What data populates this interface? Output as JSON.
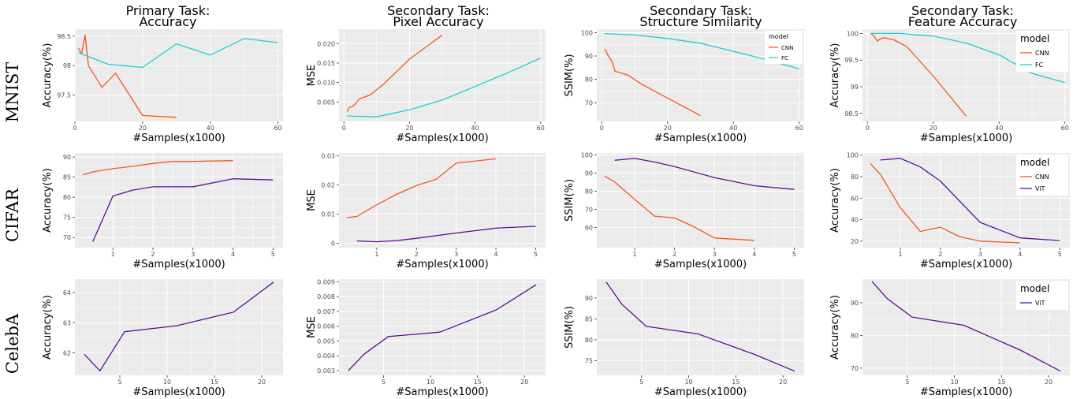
{
  "column_titles": [
    [
      "Primary Task:",
      "Accuracy"
    ],
    [
      "Secondary Task:",
      "Pixel Accuracy"
    ],
    [
      "Secondary Task:",
      "Structure Similarity"
    ],
    [
      "Secondary Task:",
      "Feature Accuracy"
    ]
  ],
  "row_labels": [
    "MNIST",
    "CIFAR",
    "CelebA"
  ],
  "colors": {
    "CNN": "#f8561b",
    "FC": "#1ccfd1",
    "ViT": "#5a1196",
    "panel_bg": "#ebebeb",
    "grid": "#ffffff"
  },
  "chart_data": [
    {
      "type": "line",
      "row": 0,
      "col": 0,
      "xlabel": "#Samples(x1000)",
      "ylabel": "Accuracy(%)",
      "xlim": [
        0,
        61.5
      ],
      "ylim": [
        97.05,
        98.62
      ],
      "xticks": [
        0,
        20,
        40,
        60
      ],
      "yticks": [
        97.5,
        98,
        98.5
      ],
      "xtick_labels": [
        "0",
        "20",
        "40",
        "60"
      ],
      "ytick_labels": [
        "97.5",
        "98",
        "98.5"
      ],
      "legend": null,
      "series": [
        {
          "color": "#f8561b",
          "x": [
            1,
            2,
            3,
            4,
            8,
            12,
            20,
            30
          ],
          "y": [
            98.3,
            98.2,
            98.52,
            98.0,
            97.63,
            97.87,
            97.15,
            97.12
          ]
        },
        {
          "color": "#1ccfd1",
          "x": [
            1,
            10,
            20,
            30,
            40,
            50,
            60
          ],
          "y": [
            98.22,
            98.02,
            97.97,
            98.37,
            98.18,
            98.46,
            98.39
          ]
        }
      ]
    },
    {
      "type": "line",
      "row": 0,
      "col": 1,
      "xlabel": "#Samples(x1000)",
      "ylabel": "MSE",
      "xlim": [
        -1.5,
        61.5
      ],
      "ylim": [
        0,
        0.0237
      ],
      "xticks": [
        0,
        20,
        40,
        60
      ],
      "yticks": [
        0.005,
        0.01,
        0.015,
        0.02
      ],
      "xtick_labels": [
        "0",
        "20",
        "40",
        "60"
      ],
      "ytick_labels": [
        "0.005",
        "0.010",
        "0.015",
        "0.020"
      ],
      "legend": null,
      "series": [
        {
          "color": "#f8561b",
          "x": [
            1,
            1.5,
            2.5,
            3.5,
            4.5,
            8,
            12,
            20,
            30
          ],
          "y": [
            0.0025,
            0.0035,
            0.0038,
            0.0045,
            0.0057,
            0.0068,
            0.0095,
            0.016,
            0.0222
          ]
        },
        {
          "color": "#1ccfd1",
          "x": [
            1,
            10,
            20,
            30,
            40,
            50,
            60
          ],
          "y": [
            0.0014,
            0.0012,
            0.003,
            0.0055,
            0.009,
            0.0125,
            0.0163
          ]
        }
      ]
    },
    {
      "type": "line",
      "row": 0,
      "col": 2,
      "xlabel": "#Samples(x1000)",
      "ylabel": "SSIM(%)",
      "xlim": [
        -1.5,
        61.5
      ],
      "ylim": [
        62,
        101.5
      ],
      "xticks": [
        0,
        20,
        40,
        60
      ],
      "yticks": [
        70,
        80,
        90,
        100
      ],
      "xtick_labels": [
        "0",
        "20",
        "40",
        "60"
      ],
      "ytick_labels": [
        "70",
        "80",
        "90",
        "100"
      ],
      "legend": {
        "title": "model",
        "entries": [
          {
            "label": "CNN",
            "color": "#f8561b"
          },
          {
            "label": "FC",
            "color": "#1ccfd1"
          }
        ],
        "size": "small"
      },
      "series": [
        {
          "color": "#f8561b",
          "x": [
            1,
            1.8,
            2.5,
            3.2,
            4,
            8,
            12,
            20,
            30
          ],
          "y": [
            93,
            90.5,
            89,
            87.5,
            83.5,
            81.8,
            78,
            72,
            64.5
          ]
        },
        {
          "color": "#1ccfd1",
          "x": [
            1,
            10,
            20,
            30,
            40,
            50,
            60
          ],
          "y": [
            99.6,
            99,
            97.5,
            95.5,
            92,
            88.5,
            84.5
          ]
        }
      ]
    },
    {
      "type": "line",
      "row": 0,
      "col": 3,
      "xlabel": "#Samples(x1000)",
      "ylabel": "Accuracy(%)",
      "xlim": [
        -1.5,
        61.5
      ],
      "ylim": [
        98.35,
        100.08
      ],
      "xticks": [
        0,
        20,
        40,
        60
      ],
      "yticks": [
        98.5,
        99,
        99.5,
        100
      ],
      "xtick_labels": [
        "0",
        "20",
        "40",
        "60"
      ],
      "ytick_labels": [
        "98.5",
        "99",
        "99.5",
        "100"
      ],
      "legend": {
        "title": "model",
        "entries": [
          {
            "label": "CNN",
            "color": "#f8561b"
          },
          {
            "label": "FC",
            "color": "#1ccfd1"
          }
        ],
        "size": "large"
      },
      "series": [
        {
          "color": "#f8561b",
          "x": [
            1,
            2,
            3,
            4,
            5,
            8,
            12,
            20,
            30
          ],
          "y": [
            100.0,
            99.95,
            99.86,
            99.9,
            99.92,
            99.88,
            99.75,
            99.2,
            98.45
          ]
        },
        {
          "color": "#1ccfd1",
          "x": [
            1,
            10,
            20,
            30,
            40,
            50,
            60
          ],
          "y": [
            100.0,
            100.0,
            99.95,
            99.82,
            99.6,
            99.25,
            99.08
          ]
        }
      ]
    },
    {
      "type": "line",
      "row": 1,
      "col": 0,
      "xlabel": "#Samples(x1000)",
      "ylabel": "Accuracy(%)",
      "xlim": [
        0.05,
        5.25
      ],
      "ylim": [
        67.5,
        91
      ],
      "xticks": [
        1,
        2,
        3,
        4,
        5
      ],
      "yticks": [
        70,
        75,
        80,
        85,
        90
      ],
      "xtick_labels": [
        "1",
        "2",
        "3",
        "4",
        "5"
      ],
      "ytick_labels": [
        "70",
        "75",
        "80",
        "85",
        "90"
      ],
      "legend": null,
      "series": [
        {
          "color": "#f8561b",
          "x": [
            0.25,
            0.5,
            1,
            1.5,
            2,
            2.5,
            3,
            3.5,
            4
          ],
          "y": [
            85.6,
            86.3,
            87.1,
            87.7,
            88.4,
            88.9,
            88.9,
            89.0,
            89.1
          ]
        },
        {
          "color": "#5a1196",
          "x": [
            0.5,
            1,
            1.5,
            2,
            3,
            4,
            5
          ],
          "y": [
            69.0,
            80.3,
            81.8,
            82.6,
            82.6,
            84.6,
            84.3
          ]
        }
      ]
    },
    {
      "type": "line",
      "row": 1,
      "col": 1,
      "xlabel": "#Samples(x1000)",
      "ylabel": "MSE",
      "xlim": [
        0.05,
        5.25
      ],
      "ylim": [
        -0.0015,
        0.031
      ],
      "xticks": [
        1,
        2,
        3,
        4,
        5
      ],
      "yticks": [
        0,
        0.01,
        0.02,
        0.03
      ],
      "xtick_labels": [
        "1",
        "2",
        "3",
        "4",
        "5"
      ],
      "ytick_labels": [
        "0",
        "0.01",
        "0.02",
        "0.03"
      ],
      "legend": null,
      "series": [
        {
          "color": "#f8561b",
          "x": [
            0.25,
            0.5,
            1,
            1.5,
            2,
            2.5,
            3,
            4
          ],
          "y": [
            0.0088,
            0.0092,
            0.0132,
            0.0168,
            0.0198,
            0.022,
            0.0275,
            0.029
          ]
        },
        {
          "color": "#5a1196",
          "x": [
            0.5,
            1,
            1.5,
            2,
            3,
            4,
            5
          ],
          "y": [
            0.0008,
            0.0005,
            0.0009,
            0.0017,
            0.0035,
            0.0052,
            0.0058
          ]
        }
      ]
    },
    {
      "type": "line",
      "row": 1,
      "col": 2,
      "xlabel": "#Samples(x1000)",
      "ylabel": "SSIM(%)",
      "xlim": [
        0.05,
        5.25
      ],
      "ylim": [
        49,
        101
      ],
      "xticks": [
        1,
        2,
        3,
        4,
        5
      ],
      "yticks": [
        60,
        70,
        80,
        90,
        100
      ],
      "xtick_labels": [
        "1",
        "2",
        "3",
        "4",
        "5"
      ],
      "ytick_labels": [
        "60",
        "70",
        "80",
        "90",
        "100"
      ],
      "legend": null,
      "series": [
        {
          "color": "#f8561b",
          "x": [
            0.25,
            0.5,
            1,
            1.5,
            2,
            2.5,
            3,
            4
          ],
          "y": [
            88.3,
            85,
            75.5,
            66.3,
            65.3,
            60.3,
            54.3,
            53.0
          ]
        },
        {
          "color": "#5a1196",
          "x": [
            0.5,
            1,
            1.5,
            2,
            3,
            4,
            5
          ],
          "y": [
            97,
            98,
            96,
            93.5,
            87.5,
            83,
            81
          ]
        }
      ]
    },
    {
      "type": "line",
      "row": 1,
      "col": 3,
      "xlabel": "#Samples(x1000)",
      "ylabel": "Accuracy(%)",
      "xlim": [
        0.05,
        5.25
      ],
      "ylim": [
        14,
        102
      ],
      "xticks": [
        1,
        2,
        3,
        4,
        5
      ],
      "yticks": [
        20,
        40,
        60,
        80,
        100
      ],
      "xtick_labels": [
        "1",
        "2",
        "3",
        "4",
        "5"
      ],
      "ytick_labels": [
        "20",
        "40",
        "60",
        "80",
        "100"
      ],
      "legend": {
        "title": "model",
        "entries": [
          {
            "label": "CNN",
            "color": "#f8561b"
          },
          {
            "label": "ViT",
            "color": "#5a1196"
          }
        ],
        "size": "large"
      },
      "series": [
        {
          "color": "#f8561b",
          "x": [
            0.25,
            0.5,
            1,
            1.5,
            2,
            2.5,
            3,
            4
          ],
          "y": [
            92,
            82,
            51,
            29,
            33,
            24,
            20,
            18.5
          ]
        },
        {
          "color": "#5a1196",
          "x": [
            0.5,
            1,
            1.5,
            2,
            3,
            4,
            5
          ],
          "y": [
            95.5,
            97,
            89,
            76,
            37.5,
            23,
            20.5
          ]
        }
      ]
    },
    {
      "type": "line",
      "row": 2,
      "col": 0,
      "xlabel": "#Samples(x1000)",
      "ylabel": "Accuracy(%)",
      "xlim": [
        0.25,
        22.25
      ],
      "ylim": [
        61.25,
        64.45
      ],
      "xticks": [
        5,
        10,
        15,
        20
      ],
      "yticks": [
        62,
        63,
        64
      ],
      "xtick_labels": [
        "5",
        "10",
        "15",
        "20"
      ],
      "ytick_labels": [
        "62",
        "63",
        "64"
      ],
      "legend": null,
      "series": [
        {
          "color": "#5a1196",
          "x": [
            1.25,
            2.9,
            5.5,
            11,
            17,
            21.25
          ],
          "y": [
            61.95,
            61.4,
            62.7,
            62.9,
            63.35,
            64.35
          ]
        }
      ]
    },
    {
      "type": "line",
      "row": 2,
      "col": 1,
      "xlabel": "#Samples(x1000)",
      "ylabel": "MSE",
      "xlim": [
        0.25,
        22.25
      ],
      "ylim": [
        0.00268,
        0.00918
      ],
      "xticks": [
        5,
        10,
        15,
        20
      ],
      "yticks": [
        0.003,
        0.004,
        0.005,
        0.006,
        0.007,
        0.008,
        0.009
      ],
      "xtick_labels": [
        "5",
        "10",
        "15",
        "20"
      ],
      "ytick_labels": [
        "0.003",
        "0.004",
        "0.005",
        "0.006",
        "0.007",
        "0.008",
        "0.009"
      ],
      "legend": null,
      "series": [
        {
          "color": "#5a1196",
          "x": [
            1.25,
            2.9,
            5.5,
            11,
            17,
            21.25
          ],
          "y": [
            0.003,
            0.0041,
            0.0053,
            0.0056,
            0.0071,
            0.0088
          ]
        }
      ]
    },
    {
      "type": "line",
      "row": 2,
      "col": 2,
      "xlabel": "#Samples(x1000)",
      "ylabel": "SSIM(%)",
      "xlim": [
        0.25,
        22.25
      ],
      "ylim": [
        71.5,
        94.5
      ],
      "xticks": [
        5,
        10,
        15,
        20
      ],
      "yticks": [
        75,
        80,
        85,
        90
      ],
      "xtick_labels": [
        "5",
        "10",
        "15",
        "20"
      ],
      "ytick_labels": [
        "75",
        "80",
        "85",
        "90"
      ],
      "legend": null,
      "series": [
        {
          "color": "#5a1196",
          "x": [
            1.25,
            2.9,
            5.5,
            11,
            17,
            21.25
          ],
          "y": [
            93.8,
            88.5,
            83.2,
            81.4,
            76.5,
            72.5
          ]
        }
      ]
    },
    {
      "type": "line",
      "row": 2,
      "col": 3,
      "xlabel": "#Samples(x1000)",
      "ylabel": "Accuracy(%)",
      "xlim": [
        0.25,
        22.25
      ],
      "ylim": [
        67.8,
        97.2
      ],
      "xticks": [
        5,
        10,
        15,
        20
      ],
      "yticks": [
        70,
        80,
        90
      ],
      "xtick_labels": [
        "5",
        "10",
        "15",
        "20"
      ],
      "ytick_labels": [
        "70",
        "80",
        "90"
      ],
      "legend": {
        "title": "model",
        "entries": [
          {
            "label": "ViT",
            "color": "#5a1196"
          }
        ],
        "size": "large"
      },
      "series": [
        {
          "color": "#5a1196",
          "x": [
            1.25,
            2.9,
            5.5,
            11,
            17,
            21.25
          ],
          "y": [
            96.5,
            91.2,
            85.6,
            83.1,
            75.5,
            69.1
          ]
        }
      ]
    }
  ]
}
